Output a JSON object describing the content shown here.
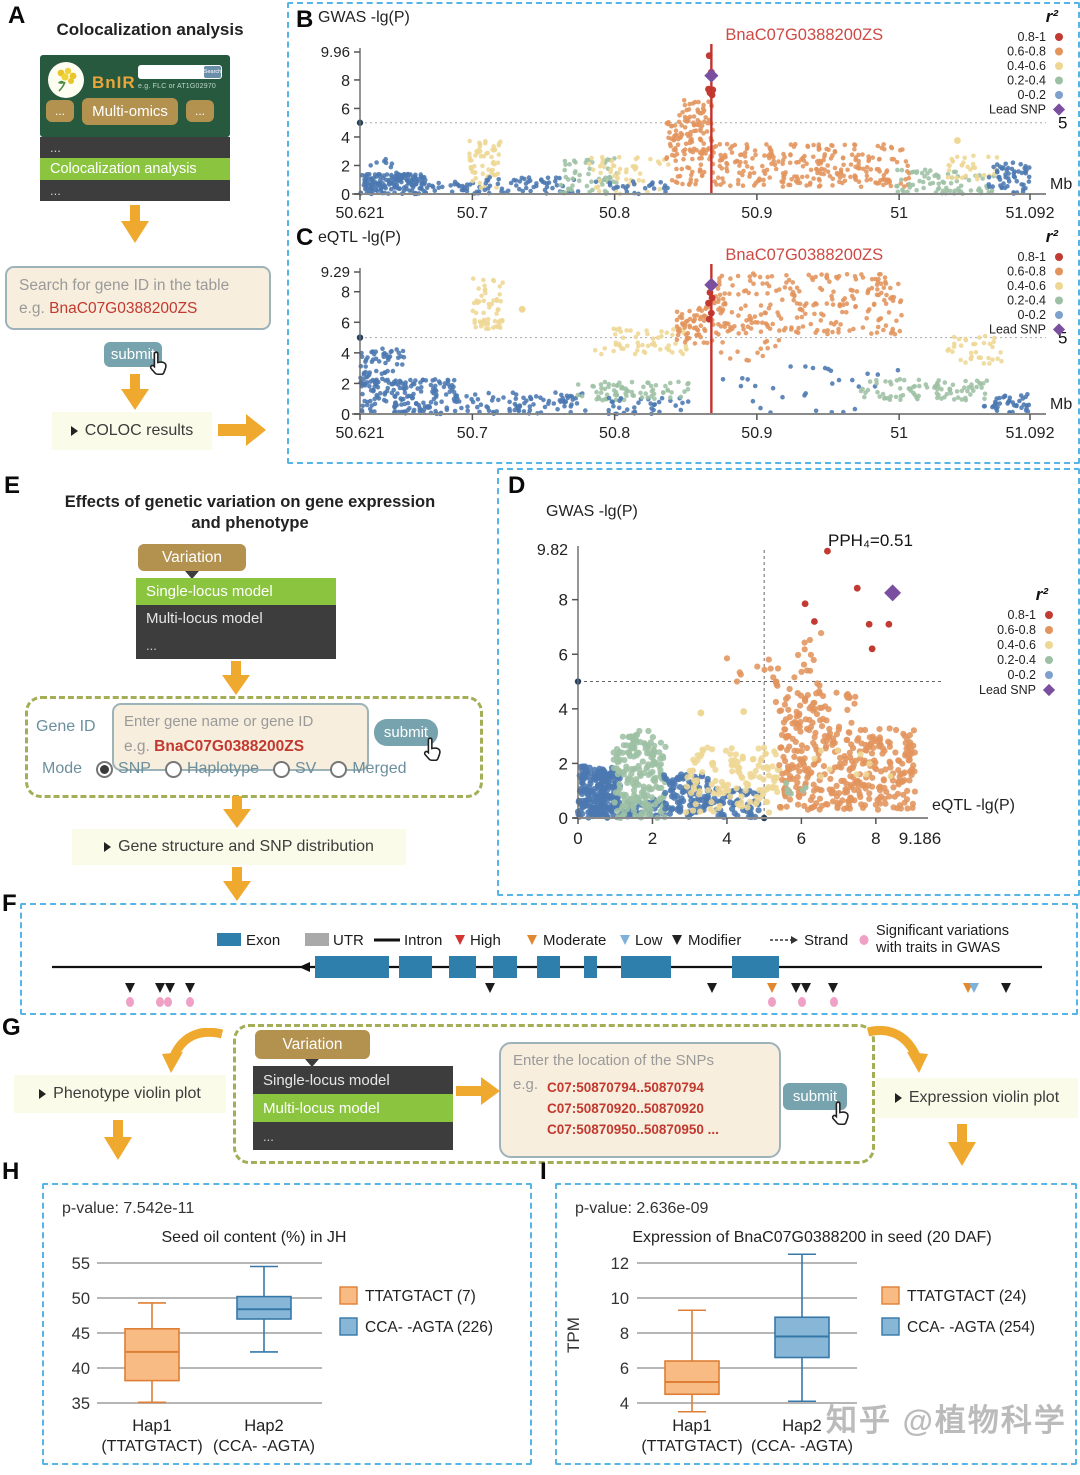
{
  "watermark": "知乎 @植物科学",
  "colors": {
    "red": "#c13b32",
    "orange": "#e2945c",
    "yellow": "#eed794",
    "green": "#9dc0a4",
    "blue": "#4b77b0",
    "purple": "#7b4fa0",
    "dark": "#26425f",
    "accent_gold": "#efa92f",
    "dashed_blue": "#56b5e6",
    "dashed_green": "#a4ae57",
    "menu_green": "#8bc53f",
    "submit_teal": "#76a3ad",
    "exon_blue": "#2e7fab",
    "pink": "#efa0c4",
    "box_orange_fill": "#f8bb84",
    "box_orange_stroke": "#de7f35",
    "box_blue_fill": "#87b6d7",
    "box_blue_stroke": "#3678a8"
  },
  "r2_legend": {
    "title": "r²",
    "items": [
      {
        "label": "0.8-1",
        "color": "#c13b32"
      },
      {
        "label": "0.6-0.8",
        "color": "#e2945c"
      },
      {
        "label": "0.4-0.6",
        "color": "#eed794"
      },
      {
        "label": "0.2-0.4",
        "color": "#9dc0a4"
      },
      {
        "label": "0-0.2",
        "color": "#7da0cc"
      },
      {
        "label": "Lead SNP",
        "color": "#7b4fa0",
        "shape": "diamond"
      }
    ]
  },
  "panels": {
    "A": {
      "label": "A",
      "title": "Colocalization analysis",
      "banner": {
        "logo_text": "BnIR",
        "search_button": "Search",
        "search_hint": "e.g. FLC or AT1G02970",
        "nav_left": "...",
        "nav_main": "Multi-omics",
        "nav_right": "..."
      },
      "menu": [
        {
          "label": "..."
        },
        {
          "label": "Colocalization analysis"
        },
        {
          "label": "..."
        }
      ],
      "search_box": {
        "line1": "Search for gene ID in the table",
        "eg_prefix": "e.g. ",
        "eg_value": "BnaC07G0388200ZS"
      },
      "submit_label": "submit",
      "result_label": "COLOC results"
    },
    "B": {
      "label": "B"
    },
    "C": {
      "label": "C"
    },
    "D": {
      "label": "D"
    },
    "E": {
      "label": "E",
      "title_line1": "Effects of genetic variation on gene expression",
      "title_line2": "and phenotype",
      "variation_button": "Variation",
      "menu": [
        {
          "label": "Single-locus model"
        },
        {
          "label": "Multi-locus model"
        },
        {
          "label": "..."
        }
      ],
      "gene_id_label": "Gene ID",
      "input": {
        "line1": "Enter gene name or gene ID",
        "eg_prefix": "e.g. ",
        "eg_value": "BnaC07G0388200ZS"
      },
      "submit_label": "submit",
      "mode": {
        "label": "Mode",
        "options": [
          {
            "label": "SNP",
            "selected": true
          },
          {
            "label": "Haplotype",
            "selected": false
          },
          {
            "label": "SV",
            "selected": false
          },
          {
            "label": "Merged",
            "selected": false
          }
        ]
      },
      "result_label": "Gene structure and SNP distribution"
    },
    "F": {
      "label": "F"
    },
    "G": {
      "label": "G",
      "variation_button": "Variation",
      "menu": [
        {
          "label": "Single-locus model"
        },
        {
          "label": "Multi-locus model"
        },
        {
          "label": "..."
        }
      ],
      "left_result": "Phenotype violin plot",
      "input": {
        "line1": "Enter the location of the SNPs",
        "eg_prefix": "e.g.",
        "lines": [
          "C07:50870794..50870794",
          "C07:50870920..50870920",
          "C07:50870950..50870950 ..."
        ]
      },
      "submit_label": "submit",
      "right_result": "Expression violin plot"
    },
    "H": {
      "label": "H"
    },
    "I": {
      "label": "I"
    }
  },
  "chart_data": [
    {
      "id": "B",
      "type": "scatter",
      "title": "GWAS -lg(P)",
      "seed": 7,
      "y_max": 9.96,
      "y_max_label": "9.96",
      "y_ticks": [
        0,
        2,
        4,
        6,
        8
      ],
      "x_min": 50.621,
      "x_max": 51.092,
      "x_ticks": [
        50.621,
        50.7,
        50.8,
        50.9,
        51,
        51.092
      ],
      "x_tick_labels": [
        "50.621",
        "50.7",
        "50.8",
        "50.9",
        "51",
        "51.092"
      ],
      "x_unit": "Mb",
      "threshold": 5,
      "threshold_label": "5",
      "gene_line_x": 50.868,
      "gene_label": "BnaC07G0388200ZS",
      "lead_snp": {
        "x": 50.868,
        "y": 8.3
      },
      "points": {
        "red": [
          [
            50.8665,
            9.7
          ],
          [
            50.868,
            8.55
          ],
          [
            50.866,
            7.35
          ],
          [
            50.869,
            7.3
          ],
          [
            50.867,
            7.1
          ],
          [
            50.8685,
            6.95
          ]
        ],
        "yellow": [
          [
            51.041,
            3.75
          ]
        ],
        "dark": [
          [
            50.621,
            5
          ]
        ]
      },
      "clusters": [
        [
          "blue",
          50.621,
          50.668,
          0,
          1.4,
          170
        ],
        [
          "blue",
          50.624,
          50.66,
          1.4,
          2.5,
          8
        ],
        [
          "blue",
          50.668,
          50.705,
          0,
          0.9,
          30
        ],
        [
          "yellow",
          50.698,
          50.72,
          0.4,
          3.8,
          55
        ],
        [
          "blue",
          50.705,
          50.775,
          0,
          1.2,
          55
        ],
        [
          "green",
          50.762,
          50.802,
          0,
          2.5,
          55
        ],
        [
          "yellow",
          50.782,
          50.838,
          0,
          2.6,
          50
        ],
        [
          "blue",
          50.78,
          50.84,
          0,
          0.9,
          25
        ],
        [
          "orange",
          50.836,
          50.869,
          2.2,
          5.2,
          90
        ],
        [
          "orange",
          50.845,
          50.869,
          4.8,
          6.6,
          35
        ],
        [
          "orange",
          50.84,
          50.868,
          0.6,
          2.2,
          25
        ],
        [
          "orange",
          50.869,
          51.008,
          0.5,
          3.5,
          260
        ],
        [
          "green",
          50.998,
          51.068,
          0,
          1.7,
          75
        ],
        [
          "yellow",
          51.032,
          51.072,
          0.9,
          2.7,
          30
        ],
        [
          "blue",
          51.063,
          51.092,
          0,
          2.2,
          55
        ]
      ]
    },
    {
      "id": "C",
      "type": "scatter",
      "title": "eQTL -lg(P)",
      "seed": 13,
      "y_max": 9.29,
      "y_max_label": "9.29",
      "y_ticks": [
        0,
        2,
        4,
        6,
        8
      ],
      "x_min": 50.621,
      "x_max": 51.092,
      "x_ticks": [
        50.621,
        50.7,
        50.8,
        50.9,
        51,
        51.092
      ],
      "x_tick_labels": [
        "50.621",
        "50.7",
        "50.8",
        "50.9",
        "51",
        "51.092"
      ],
      "x_unit": "Mb",
      "threshold": 5,
      "threshold_label": "5",
      "gene_line_x": 50.868,
      "gene_label": "BnaC07G0388200ZS",
      "lead_snp": {
        "x": 50.868,
        "y": 8.45
      },
      "points": {
        "red": [
          [
            50.867,
            7.95
          ],
          [
            50.8685,
            7.6
          ],
          [
            50.866,
            7.25
          ],
          [
            50.868,
            6.6
          ],
          [
            50.8665,
            6.2
          ]
        ],
        "yellow": [
          [
            50.735,
            6.85
          ]
        ],
        "dark": [
          [
            50.621,
            5
          ]
        ]
      },
      "clusters": [
        [
          "blue",
          50.621,
          50.652,
          1.8,
          4.3,
          70
        ],
        [
          "blue",
          50.621,
          50.69,
          0,
          2.3,
          160
        ],
        [
          "yellow",
          50.7,
          50.722,
          5.4,
          8.9,
          55
        ],
        [
          "blue",
          50.69,
          50.78,
          0,
          1.4,
          80
        ],
        [
          "green",
          50.773,
          50.815,
          0.9,
          2.1,
          45
        ],
        [
          "yellow",
          50.786,
          50.856,
          3.9,
          5.6,
          55
        ],
        [
          "blue",
          50.79,
          50.852,
          0,
          1.1,
          35
        ],
        [
          "green",
          50.818,
          50.853,
          1,
          2.1,
          28
        ],
        [
          "orange",
          50.843,
          50.869,
          4.6,
          7.0,
          60
        ],
        [
          "orange",
          50.869,
          51.002,
          5.2,
          9.2,
          240
        ],
        [
          "orange",
          50.872,
          50.93,
          3.5,
          5.2,
          14
        ],
        [
          "blue",
          50.87,
          51.0,
          0.1,
          3.2,
          30
        ],
        [
          "green",
          50.972,
          51.062,
          0.9,
          2.3,
          85
        ],
        [
          "yellow",
          51.032,
          51.072,
          3.3,
          5.1,
          35
        ],
        [
          "blue",
          51.058,
          51.092,
          0,
          1.3,
          40
        ]
      ]
    },
    {
      "id": "D",
      "type": "scatter",
      "title": "GWAS -lg(P)",
      "x_label": "eQTL -lg(P)",
      "seed": 21,
      "annotation": "PPH₄=0.51",
      "y_max": 9.82,
      "y_max_label": "9.82",
      "y_ticks": [
        0,
        2,
        4,
        6,
        8
      ],
      "x_max": 9.186,
      "x_max_label": "9.186",
      "x_ticks": [
        0,
        2,
        4,
        6,
        8
      ],
      "threshold_x": 5,
      "threshold_y": 5,
      "lead_snp": {
        "x": 8.45,
        "y": 8.25
      },
      "points": {
        "red": [
          [
            6.7,
            9.78
          ],
          [
            7.5,
            8.42
          ],
          [
            6.1,
            7.85
          ],
          [
            6.35,
            7.2
          ],
          [
            7.82,
            7.1
          ],
          [
            8.35,
            7.1
          ],
          [
            7.9,
            6.2
          ]
        ],
        "yellow": [
          [
            3.3,
            3.85
          ],
          [
            4.45,
            3.9
          ]
        ],
        "dark": [
          [
            0,
            5
          ],
          [
            5,
            0
          ]
        ]
      },
      "clusters": [
        [
          "blue",
          0,
          1.15,
          0,
          1.9,
          210
        ],
        [
          "blue",
          1.1,
          2.4,
          0,
          0.7,
          40
        ],
        [
          "green",
          0.95,
          2.35,
          0,
          3.0,
          190
        ],
        [
          "green",
          1.3,
          1.9,
          2.8,
          3.3,
          6
        ],
        [
          "blue",
          2.3,
          3.5,
          0,
          1.6,
          90
        ],
        [
          "blue",
          3.5,
          4.9,
          0,
          1.1,
          55
        ],
        [
          "yellow",
          2.9,
          5.5,
          0.2,
          2.6,
          130
        ],
        [
          "orange",
          5.4,
          9.05,
          0.3,
          3.3,
          340
        ],
        [
          "orange",
          5.2,
          7.6,
          3.2,
          4.6,
          30
        ],
        [
          "orange",
          5.3,
          6.7,
          3.3,
          5.0,
          40
        ],
        [
          "orange",
          4.0,
          6.5,
          5.0,
          5.9,
          16
        ],
        [
          "orange",
          5.9,
          6.6,
          5.9,
          6.9,
          6
        ],
        [
          "yellow",
          6.3,
          8.6,
          1.4,
          2.6,
          10
        ],
        [
          "green",
          5.5,
          6.2,
          0.7,
          1.5,
          6
        ]
      ]
    },
    {
      "id": "F",
      "type": "gene-structure",
      "legend": [
        {
          "label": "Exon",
          "icon": "rect",
          "color": "#2e7fab"
        },
        {
          "label": "UTR",
          "icon": "rect",
          "color": "#a9a9a9"
        },
        {
          "label": "Intron",
          "icon": "line",
          "color": "#111111"
        },
        {
          "label": "High",
          "icon": "tri",
          "color": "#d23430"
        },
        {
          "label": "Moderate",
          "icon": "tri",
          "color": "#e0892e"
        },
        {
          "label": "Low",
          "icon": "tri",
          "color": "#7fb2d8"
        },
        {
          "label": "Modifier",
          "icon": "tri",
          "color": "#222222"
        },
        {
          "label": "Strand",
          "icon": "strand",
          "color": "#333333"
        },
        {
          "label": [
            "Significant variations",
            "with traits in GWAS"
          ],
          "icon": "dot",
          "color": "#efa0c4"
        }
      ],
      "line": [
        30,
        1020
      ],
      "strand_arrow_x": 286,
      "exons": [
        [
          293,
          74
        ],
        [
          377,
          33
        ],
        [
          427,
          27
        ],
        [
          471,
          24
        ],
        [
          515,
          23
        ],
        [
          562,
          13
        ],
        [
          599,
          50
        ],
        [
          710,
          47
        ]
      ],
      "markers": {
        "modifier": [
          108,
          138,
          148,
          168,
          468,
          690,
          774,
          784,
          811,
          984
        ],
        "moderate": [
          750,
          946
        ],
        "low": [
          952
        ]
      },
      "sig_dots": [
        108,
        138,
        146,
        168,
        750,
        780,
        812
      ]
    },
    {
      "id": "H",
      "type": "boxplot",
      "p_value": "p-value: 7.542e-11",
      "title": "Seed oil content (%) in JH",
      "y_ticks": [
        35,
        40,
        45,
        50,
        55
      ],
      "y_min": 35,
      "y_max": 55,
      "groups": [
        {
          "name": "Hap1",
          "sub": "(TTATGTACT)",
          "color": "orange",
          "min": 35.1,
          "q1": 38.2,
          "median": 42.3,
          "q3": 45.6,
          "max": 49.3
        },
        {
          "name": "Hap2",
          "sub": "(CCA- -AGTA)",
          "color": "blue",
          "min": 42.3,
          "q1": 47.0,
          "median": 48.4,
          "q3": 50.2,
          "max": 54.5
        }
      ],
      "legend": [
        {
          "label": "TTATGTACT (7)",
          "color": "orange"
        },
        {
          "label": "CCA- -AGTA (226)",
          "color": "blue"
        }
      ]
    },
    {
      "id": "I",
      "type": "boxplot",
      "p_value": "p-value: 2.636e-09",
      "title": "Expression of BnaC07G0388200 in seed (20 DAF)",
      "y_label": "TPM",
      "y_ticks": [
        4,
        6,
        8,
        10,
        12
      ],
      "y_min": 4,
      "y_max": 12,
      "groups": [
        {
          "name": "Hap1",
          "sub": "(TTATGTACT)",
          "color": "orange",
          "min": 3.5,
          "q1": 4.5,
          "median": 5.2,
          "q3": 6.4,
          "max": 9.3
        },
        {
          "name": "Hap2",
          "sub": "(CCA- -AGTA)",
          "color": "blue",
          "min": 4.1,
          "q1": 6.6,
          "median": 7.8,
          "q3": 8.9,
          "max": 12.5
        }
      ],
      "legend": [
        {
          "label": "TTATGTACT (24)",
          "color": "orange"
        },
        {
          "label": "CCA- -AGTA (254)",
          "color": "blue"
        }
      ]
    }
  ]
}
